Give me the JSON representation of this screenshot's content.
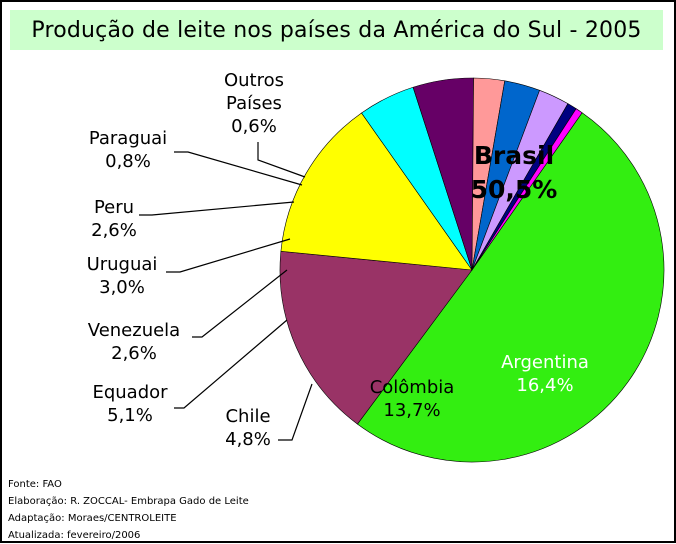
{
  "chart_data": {
    "type": "pie",
    "title": "Produção de leite nos países da América do Sul - 2005",
    "slices": [
      {
        "name": "Brasil",
        "value_label": "50,5%",
        "value": 50.5,
        "color": "#33ee11"
      },
      {
        "name": "Argentina",
        "value_label": "16,4%",
        "value": 16.4,
        "color": "#993366"
      },
      {
        "name": "Colômbia",
        "value_label": "13,7%",
        "value": 13.7,
        "color": "#ffff00"
      },
      {
        "name": "Chile",
        "value_label": "4,8%",
        "value": 4.8,
        "color": "#00ffff"
      },
      {
        "name": "Equador",
        "value_label": "5,1%",
        "value": 5.1,
        "color": "#660066"
      },
      {
        "name": "Venezuela",
        "value_label": "2,6%",
        "value": 2.6,
        "color": "#ff9999"
      },
      {
        "name": "Uruguai",
        "value_label": "3,0%",
        "value": 3.0,
        "color": "#0066cc"
      },
      {
        "name": "Peru",
        "value_label": "2,6%",
        "value": 2.6,
        "color": "#cc99ff"
      },
      {
        "name": "Paraguai",
        "value_label": "0,8%",
        "value": 0.8,
        "color": "#000080"
      },
      {
        "name": "Outros Países",
        "value_label": "0,6%",
        "value": 0.6,
        "color": "#ff00ff"
      }
    ]
  },
  "credits": [
    "Fonte: FAO",
    "Elaboração: R. ZOCCAL- Embrapa Gado de Leite",
    "Adaptação: Moraes/CENTROLEITE",
    "Atualizada: fevereiro/2006"
  ]
}
